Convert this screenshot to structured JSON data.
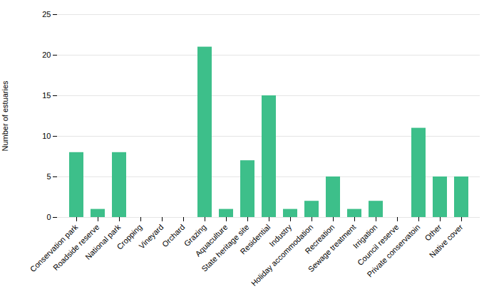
{
  "chart_data": {
    "type": "bar",
    "categories": [
      "Conservation park",
      "Roadside reserve",
      "National park",
      "Cropping",
      "Vineyard",
      "Orchard",
      "Grazing",
      "Aquaculture",
      "State heritage site",
      "Residential",
      "Industry",
      "Holiday accommodation",
      "Recreation",
      "Sewage treatment",
      "Irrigation",
      "Council reserve",
      "Private conservatoin",
      "Other",
      "Native cover"
    ],
    "values": [
      8,
      1,
      8,
      0,
      0,
      0,
      21,
      1,
      7,
      15,
      1,
      2,
      5,
      1,
      2,
      0,
      11,
      5,
      5
    ],
    "color": "#3dbf8a",
    "ylabel": "Number of estuaries",
    "ylim": [
      0,
      25
    ],
    "yticks": [
      0,
      5,
      10,
      15,
      20,
      25
    ],
    "grid": true
  }
}
